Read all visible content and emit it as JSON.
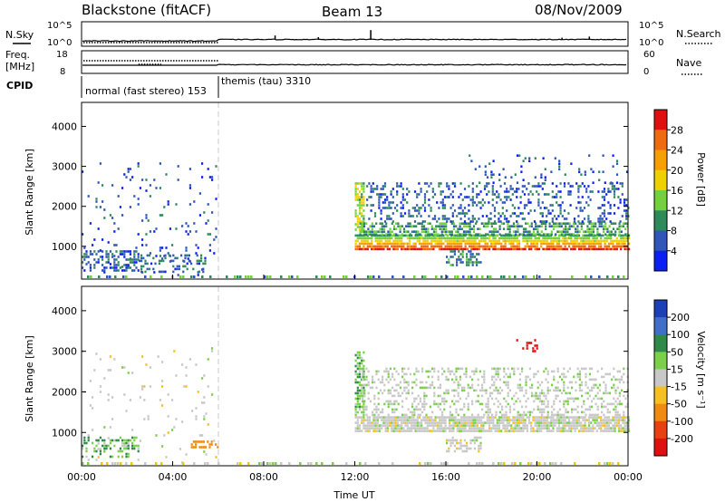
{
  "header": {
    "radar": "Blackstone (fitACF)",
    "beam": "Beam 13",
    "date": "08/Nov/2009"
  },
  "strips": {
    "nsky_label": "N.Sky",
    "nsky_ticks": [
      "10^5",
      "10^0"
    ],
    "nsearch_label": "N.Search",
    "nsearch_ticks": [
      "10^5",
      "10^0"
    ],
    "freq_label_line1": "Freq.",
    "freq_label_line2": "[MHz]",
    "freq_ticks": [
      "18",
      "8"
    ],
    "nave_label": "Nave",
    "nave_ticks": [
      "60",
      "0"
    ],
    "cpid_label": "CPID",
    "cpid_modes": [
      {
        "name": "normal (fast stereo) 153",
        "start_hour": 0,
        "end_hour": 6
      },
      {
        "name": "themis (tau) 3310",
        "start_hour": 6,
        "end_hour": 24
      }
    ]
  },
  "axes": {
    "xlabel": "Time UT",
    "x_ticks": [
      "00:00",
      "04:00",
      "08:00",
      "12:00",
      "16:00",
      "20:00",
      "00:00"
    ],
    "ylabel": "Slant Range [km]",
    "y_ticks": [
      "1000",
      "2000",
      "3000",
      "4000"
    ]
  },
  "colorbars": {
    "power": {
      "label": "Power [dB]",
      "ticks": [
        "4",
        "8",
        "12",
        "16",
        "20",
        "24",
        "28"
      ],
      "colors": [
        "#0a1ff0",
        "#2f56b8",
        "#2f8a5a",
        "#72d13c",
        "#f0d000",
        "#f5a000",
        "#f06a10",
        "#e01010"
      ]
    },
    "velocity": {
      "label": "Velocity [m s⁻¹]",
      "ticks": [
        "200",
        "100",
        "50",
        "15",
        "-15",
        "-50",
        "-100",
        "-200"
      ],
      "colors": [
        "#1d3fb8",
        "#3f6fc8",
        "#2f8a4a",
        "#7ad04a",
        "#c8c8c8",
        "#f5c020",
        "#f08a10",
        "#e84010",
        "#e01010"
      ]
    }
  },
  "chart_data": [
    {
      "type": "heatmap",
      "title": "Power [dB]",
      "xlabel": "Time UT",
      "ylabel": "Slant Range [km]",
      "xlim": [
        0,
        24
      ],
      "ylim": [
        180,
        4600
      ],
      "clim": [
        0,
        30
      ],
      "regions": [
        {
          "t0": 0.0,
          "t1": 6.0,
          "r0": 250,
          "r1": 3100,
          "value": 5,
          "density": 0.05
        },
        {
          "t0": 0.0,
          "t1": 2.5,
          "r0": 400,
          "r1": 900,
          "value": 6,
          "density": 0.45
        },
        {
          "t0": 2.5,
          "t1": 5.5,
          "r0": 350,
          "r1": 800,
          "value": 7,
          "density": 0.3
        },
        {
          "t0": 12.0,
          "t1": 12.4,
          "r0": 1400,
          "r1": 2600,
          "value": 14,
          "density": 0.7
        },
        {
          "t0": 12.0,
          "t1": 24.0,
          "r0": 900,
          "r1": 1300,
          "value": 25,
          "density": 0.85
        },
        {
          "t0": 12.2,
          "t1": 24.0,
          "r0": 1300,
          "r1": 1600,
          "value": 10,
          "density": 0.6
        },
        {
          "t0": 12.5,
          "t1": 24.0,
          "r0": 1600,
          "r1": 2600,
          "value": 6,
          "density": 0.25
        },
        {
          "t0": 16.0,
          "t1": 17.5,
          "r0": 550,
          "r1": 900,
          "value": 9,
          "density": 0.5
        },
        {
          "t0": 17.0,
          "t1": 24.0,
          "r0": 2600,
          "r1": 3300,
          "value": 5,
          "density": 0.06
        }
      ]
    },
    {
      "type": "heatmap",
      "title": "Velocity [m s⁻¹]",
      "xlabel": "Time UT",
      "ylabel": "Slant Range [km]",
      "xlim": [
        0,
        24
      ],
      "ylim": [
        180,
        4600
      ],
      "clim": [
        -200,
        200
      ],
      "regions": [
        {
          "t0": 0.0,
          "t1": 6.0,
          "r0": 250,
          "r1": 3100,
          "value": 0,
          "density": 0.04
        },
        {
          "t0": 0.0,
          "t1": 2.5,
          "r0": 400,
          "r1": 900,
          "value": 30,
          "density": 0.3
        },
        {
          "t0": 4.8,
          "t1": 6.0,
          "r0": 650,
          "r1": 800,
          "value": -50,
          "density": 0.6
        },
        {
          "t0": 12.0,
          "t1": 12.4,
          "r0": 1400,
          "r1": 3000,
          "value": 30,
          "density": 0.6
        },
        {
          "t0": 12.0,
          "t1": 24.0,
          "r0": 1000,
          "r1": 1400,
          "value": 0,
          "density": 0.85
        },
        {
          "t0": 12.3,
          "t1": 24.0,
          "r0": 1400,
          "r1": 2600,
          "value": 5,
          "density": 0.3
        },
        {
          "t0": 16.0,
          "t1": 17.5,
          "r0": 500,
          "r1": 900,
          "value": 0,
          "density": 0.5
        },
        {
          "t0": 19.0,
          "t1": 20.0,
          "r0": 3000,
          "r1": 3300,
          "value": -200,
          "density": 0.3
        }
      ]
    },
    {
      "type": "line",
      "title": "N.Sky / N.Search",
      "x": [
        0,
        6,
        6.01,
        24
      ],
      "series": [
        {
          "values": [
            1.0,
            1.0,
            1.3,
            1.3
          ]
        }
      ]
    },
    {
      "type": "line",
      "title": "Freq. [MHz] / Nave",
      "x": [
        0,
        6,
        6.01,
        24
      ],
      "series": [
        {
          "values": [
            14.5,
            14.5,
            11.0,
            11.0
          ]
        }
      ]
    }
  ]
}
